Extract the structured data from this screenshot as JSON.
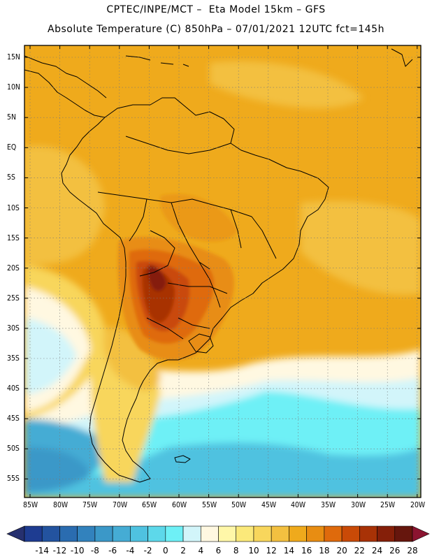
{
  "title": {
    "line1": "CPTEC/INPE/MCT –  Eta Model 15km – GFS",
    "line2": "Absolute Temperature (C) 850hPa – 07/01/2021 12UTC fct=145h"
  },
  "map": {
    "lat_labels": [
      "15N",
      "10N",
      "5N",
      "EQ",
      "5S",
      "10S",
      "15S",
      "20S",
      "25S",
      "30S",
      "35S",
      "40S",
      "45S",
      "50S",
      "55S"
    ],
    "lon_labels": [
      "85W",
      "80W",
      "75W",
      "70W",
      "65W",
      "60W",
      "55W",
      "50W",
      "45W",
      "40W",
      "35W",
      "30W",
      "25W",
      "20W"
    ]
  },
  "colorbar": {
    "ticks": [
      "-14",
      "-12",
      "-10",
      "-8",
      "-6",
      "-4",
      "-2",
      "0",
      "2",
      "4",
      "6",
      "8",
      "10",
      "12",
      "14",
      "16",
      "18",
      "20",
      "22",
      "24",
      "26",
      "28"
    ],
    "colors": [
      "#1e3c91",
      "#23539f",
      "#2a6cb0",
      "#3282bd",
      "#3b98c8",
      "#45acd4",
      "#4fc2e0",
      "#5dd8ea",
      "#6ef0f6",
      "#d2f5fa",
      "#fff8e1",
      "#fff7a8",
      "#fbe97a",
      "#f8d65c",
      "#f3c040",
      "#efaa1c",
      "#e88d12",
      "#df6a0c",
      "#c94a07",
      "#a83206",
      "#851f09",
      "#66160d"
    ],
    "under_color": "#26306f",
    "over_color": "#8b1430"
  }
}
